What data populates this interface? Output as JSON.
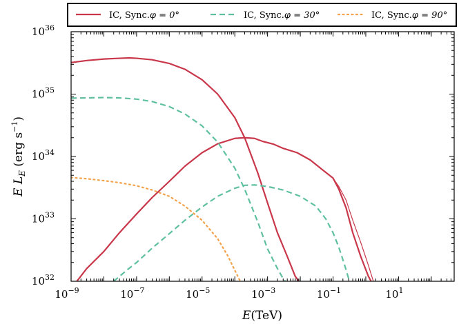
{
  "chart_data": {
    "type": "line",
    "xscale": "log",
    "yscale": "log",
    "xlim": [
      1e-09,
      500.0
    ],
    "ylim": [
      1e+32,
      1e+36
    ],
    "xlabel": "E(TeV)",
    "ylabel": "E L_E (erg s^-1)",
    "x_ticks": [
      {
        "value": 1e-09,
        "base": "10",
        "exp": "−9"
      },
      {
        "value": 1e-07,
        "base": "10",
        "exp": "−7"
      },
      {
        "value": 1e-05,
        "base": "10",
        "exp": "−5"
      },
      {
        "value": 0.001,
        "base": "10",
        "exp": "−3"
      },
      {
        "value": 0.1,
        "base": "10",
        "exp": "−1"
      },
      {
        "value": 10,
        "base": "10",
        "exp": "1"
      }
    ],
    "y_ticks": [
      {
        "value": 1e+32,
        "base": "10",
        "exp": "32"
      },
      {
        "value": 1e+33,
        "base": "10",
        "exp": "33"
      },
      {
        "value": 1e+34,
        "base": "10",
        "exp": "34"
      },
      {
        "value": 1e+35,
        "base": "10",
        "exp": "35"
      },
      {
        "value": 1e+36,
        "base": "10",
        "exp": "36"
      }
    ],
    "legend": {
      "placement": "top",
      "entries": [
        {
          "label": "IC, Sync.",
          "phi": "φ = 0°",
          "color": "#c9374a",
          "dash": "solid"
        },
        {
          "label": "IC, Sync.",
          "phi": "φ = 30°",
          "color": "#5fc0a0",
          "dash": "dashed"
        },
        {
          "label": "IC, Sync.",
          "phi": "φ = 90°",
          "color": "#f2a24a",
          "dash": "dotted"
        }
      ]
    },
    "series": [
      {
        "style": "solid",
        "color": "#c9374a",
        "width": 2.2,
        "points": [
          [
            1e-09,
            3.2e+35
          ],
          [
            3e-09,
            3.45e+35
          ],
          [
            1e-08,
            3.65e+35
          ],
          [
            3e-08,
            3.75e+35
          ],
          [
            6e-08,
            3.8e+35
          ],
          [
            1e-07,
            3.75e+35
          ],
          [
            3e-07,
            3.55e+35
          ],
          [
            1e-06,
            3.1e+35
          ],
          [
            3e-06,
            2.5e+35
          ],
          [
            1e-05,
            1.7e+35
          ],
          [
            3e-05,
            1e+35
          ],
          [
            0.0001,
            4.2e+34
          ],
          [
            0.0002,
            2e+34
          ],
          [
            0.0005,
            5.5e+33
          ],
          [
            0.001,
            1.8e+33
          ],
          [
            0.002,
            6e+32
          ],
          [
            0.004,
            2.5e+32
          ],
          [
            0.007,
            1.2e+32
          ],
          [
            0.009,
            1e+32
          ]
        ]
      },
      {
        "style": "solid",
        "color": "#c9374a",
        "width": 2.2,
        "points": [
          [
            1.5e-09,
            1e+32
          ],
          [
            3e-09,
            1.6e+32
          ],
          [
            1e-08,
            3e+32
          ],
          [
            3e-08,
            6e+32
          ],
          [
            1e-07,
            1.2e+33
          ],
          [
            3e-07,
            2.2e+33
          ],
          [
            1e-06,
            4e+33
          ],
          [
            3e-06,
            7e+33
          ],
          [
            1e-05,
            1.15e+34
          ],
          [
            3e-05,
            1.6e+34
          ],
          [
            0.0001,
            1.95e+34
          ],
          [
            0.0002,
            2e+34
          ],
          [
            0.0004,
            1.95e+34
          ],
          [
            0.0007,
            1.75e+34
          ],
          [
            0.0015,
            1.58e+34
          ],
          [
            0.003,
            1.35e+34
          ],
          [
            0.008,
            1.15e+34
          ],
          [
            0.02,
            8.8e+33
          ],
          [
            0.05,
            6e+33
          ],
          [
            0.1,
            4.5e+33
          ],
          [
            0.15,
            3e+33
          ],
          [
            0.25,
            1.5e+33
          ],
          [
            0.4,
            6e+32
          ],
          [
            0.7,
            2.5e+32
          ],
          [
            1.2,
            1.2e+32
          ],
          [
            1.45,
            1e+32
          ]
        ]
      },
      {
        "style": "solid",
        "color": "#c9374a",
        "width": 1.2,
        "points": [
          [
            0.1,
            4.5e+33
          ],
          [
            0.15,
            3.3e+33
          ],
          [
            0.25,
            2e+33
          ],
          [
            0.4,
            9.5e+32
          ],
          [
            0.7,
            4.2e+32
          ],
          [
            1.2,
            1.8e+32
          ],
          [
            1.7,
            1e+32
          ]
        ]
      },
      {
        "style": "dashed",
        "color": "#5fc0a0",
        "width": 2.2,
        "points": [
          [
            1e-09,
            8.6e+34
          ],
          [
            1e-08,
            8.8e+34
          ],
          [
            3e-08,
            8.7e+34
          ],
          [
            1e-07,
            8.3e+34
          ],
          [
            3e-07,
            7.6e+34
          ],
          [
            1e-06,
            6.3e+34
          ],
          [
            3e-06,
            4.8e+34
          ],
          [
            1e-05,
            3.1e+34
          ],
          [
            3e-05,
            1.7e+34
          ],
          [
            0.0001,
            6.5e+33
          ],
          [
            0.0002,
            3e+33
          ],
          [
            0.0005,
            9e+32
          ],
          [
            0.001,
            3.3e+32
          ],
          [
            0.002,
            1.6e+32
          ],
          [
            0.003,
            1.1e+32
          ],
          [
            0.0035,
            1e+32
          ]
        ]
      },
      {
        "style": "dashed",
        "color": "#5fc0a0",
        "width": 2.2,
        "points": [
          [
            2e-08,
            1e+32
          ],
          [
            5e-08,
            1.5e+32
          ],
          [
            1e-07,
            2e+32
          ],
          [
            3e-07,
            3.4e+32
          ],
          [
            1e-06,
            5.8e+32
          ],
          [
            3e-06,
            9.5e+32
          ],
          [
            1e-05,
            1.55e+33
          ],
          [
            3e-05,
            2.3e+33
          ],
          [
            0.0001,
            3.1e+33
          ],
          [
            0.0002,
            3.45e+33
          ],
          [
            0.0004,
            3.5e+33
          ],
          [
            0.001,
            3.3e+33
          ],
          [
            0.003,
            2.9e+33
          ],
          [
            0.01,
            2.3e+33
          ],
          [
            0.03,
            1.6e+33
          ],
          [
            0.06,
            1e+33
          ],
          [
            0.1,
            6e+32
          ],
          [
            0.15,
            3.5e+32
          ],
          [
            0.22,
            1.9e+32
          ],
          [
            0.3,
            1.1e+32
          ],
          [
            0.33,
            1e+32
          ]
        ]
      },
      {
        "style": "dotted",
        "color": "#f2a24a",
        "width": 2.2,
        "points": [
          [
            1e-09,
            4.6e+33
          ],
          [
            3e-09,
            4.4e+33
          ],
          [
            1e-08,
            4.1e+33
          ],
          [
            3e-08,
            3.8e+33
          ],
          [
            1e-07,
            3.4e+33
          ],
          [
            3e-07,
            2.9e+33
          ],
          [
            1e-06,
            2.3e+33
          ],
          [
            3e-06,
            1.6e+33
          ],
          [
            1e-05,
            9.5e+32
          ],
          [
            3e-05,
            4.8e+32
          ],
          [
            6e-05,
            2.6e+32
          ],
          [
            0.0001,
            1.5e+32
          ],
          [
            0.00014,
            1.05e+32
          ],
          [
            0.00015,
            1e+32
          ]
        ]
      }
    ]
  }
}
